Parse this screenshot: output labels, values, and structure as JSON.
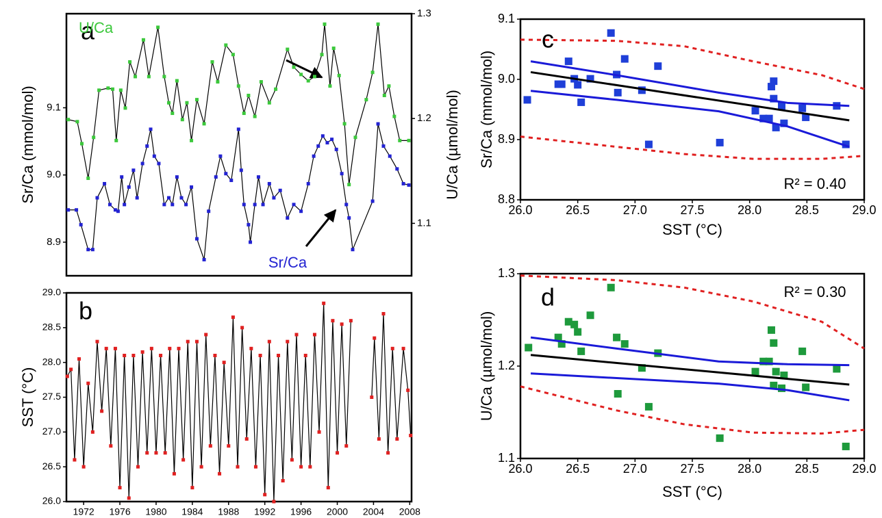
{
  "chart_data": [
    {
      "type": "line",
      "label": "a",
      "ylabel": "Sr/Ca (mmol/mol)",
      "y2label": "U/Ca (µmol/mol)",
      "xlim": [
        1970.1,
        2008.2
      ],
      "ylim": [
        8.85,
        9.24
      ],
      "y2lim": [
        1.05,
        1.3
      ],
      "yticks": [
        8.9,
        {
          "value": 9.0,
          "label": "9.0"
        },
        9.1
      ],
      "y2ticks": [
        1.1,
        1.2,
        1.3
      ],
      "series": [
        {
          "name": "U/Ca",
          "color": "#3cc83c",
          "line_color": "#000000",
          "marker": "square",
          "axis": "y2",
          "x": [
            1970.3,
            1971.3,
            1971.8,
            1972.5,
            1973.1,
            1973.7,
            1974.7,
            1975.2,
            1975.6,
            1976.1,
            1976.6,
            1977.1,
            1977.7,
            1978.6,
            1979.2,
            1980.2,
            1980.9,
            1981.4,
            1981.8,
            1982.3,
            1982.9,
            1983.4,
            1983.9,
            1984.5,
            1985.3,
            1986.2,
            1986.8,
            1987.7,
            1988.5,
            1989.1,
            1989.7,
            1990.2,
            1990.9,
            1991.6,
            1992.5,
            1993.2,
            1994.5,
            1995.2,
            1996.0,
            1996.8,
            1997.5,
            1998.3,
            1998.6,
            1999.2,
            1999.6,
            2000.2,
            2000.8,
            2001.3,
            2002.0,
            2003.2,
            2003.9,
            2004.5,
            2005.2,
            2005.7,
            2006.3,
            2006.9,
            2007.9
          ],
          "values": [
            1.199,
            1.197,
            1.176,
            1.143,
            1.182,
            1.227,
            1.229,
            1.228,
            1.179,
            1.227,
            1.21,
            1.254,
            1.24,
            1.275,
            1.24,
            1.287,
            1.24,
            1.215,
            1.205,
            1.236,
            1.199,
            1.215,
            1.179,
            1.218,
            1.195,
            1.254,
            1.235,
            1.27,
            1.261,
            1.231,
            1.205,
            1.222,
            1.202,
            1.235,
            1.215,
            1.228,
            1.266,
            1.249,
            1.242,
            1.236,
            1.24,
            1.261,
            1.29,
            1.231,
            1.267,
            1.241,
            1.195,
            1.137,
            1.182,
            1.218,
            1.244,
            1.29,
            1.222,
            1.231,
            1.202,
            1.179,
            1.179
          ]
        },
        {
          "name": "Sr/Ca",
          "color": "#2323d2",
          "line_color": "#000000",
          "marker": "square",
          "axis": "y",
          "x": [
            1970.3,
            1971.2,
            1971.7,
            1972.5,
            1973.0,
            1973.5,
            1974.3,
            1974.9,
            1975.5,
            1975.8,
            1976.2,
            1976.5,
            1977.0,
            1977.5,
            1977.9,
            1978.5,
            1979.0,
            1979.4,
            1979.8,
            1980.3,
            1980.9,
            1981.4,
            1981.8,
            1982.3,
            1982.8,
            1983.3,
            1983.9,
            1984.5,
            1985.3,
            1985.8,
            1986.6,
            1987.1,
            1987.7,
            1988.3,
            1989.1,
            1989.4,
            1989.7,
            1990.2,
            1990.4,
            1990.9,
            1991.3,
            1991.8,
            1992.5,
            1993.0,
            1993.7,
            1994.5,
            1995.2,
            1996.0,
            1996.8,
            1997.4,
            1997.9,
            1998.4,
            1998.9,
            1999.4,
            1999.9,
            2000.5,
            2001.0,
            2001.3,
            2001.7,
            2003.9,
            2004.5,
            2005.1,
            2005.8,
            2006.6,
            2007.3,
            2007.9
          ],
          "values": [
            8.948,
            8.948,
            8.926,
            8.889,
            8.889,
            8.966,
            8.987,
            8.956,
            8.948,
            8.946,
            8.997,
            8.956,
            8.982,
            9.007,
            8.966,
            9.017,
            9.043,
            9.068,
            9.028,
            9.017,
            8.956,
            8.966,
            8.956,
            8.997,
            8.966,
            8.956,
            8.982,
            8.905,
            8.874,
            8.946,
            8.997,
            9.028,
            9.002,
            8.992,
            9.068,
            9.007,
            8.956,
            8.926,
            8.9,
            8.956,
            8.997,
            8.956,
            8.987,
            8.966,
            8.977,
            8.936,
            8.956,
            8.946,
            8.987,
            9.028,
            9.043,
            9.058,
            9.048,
            9.053,
            9.038,
            9.002,
            8.956,
            8.936,
            8.889,
            8.961,
            9.076,
            9.043,
            9.028,
            9.009,
            8.987,
            8.985
          ]
        }
      ]
    },
    {
      "type": "line",
      "label": "b",
      "ylabel": "SST (°C)",
      "xlim": [
        1970.1,
        2008.2
      ],
      "ylim": [
        26,
        29
      ],
      "xticks": [
        1972,
        1976,
        1980,
        1984,
        1988,
        1992,
        1996,
        2000,
        2004,
        2008
      ],
      "yticks": [
        {
          "value": 26,
          "label": "26.0"
        },
        26.5,
        {
          "value": 27,
          "label": "27.0"
        },
        27.5,
        {
          "value": 28,
          "label": "28.0"
        },
        28.5,
        {
          "value": 29,
          "label": "29.0"
        }
      ],
      "series": [
        {
          "color": "#e02020",
          "line_color": "#000000",
          "marker": "square",
          "x": [
            1970.2,
            1970.6,
            1971.0,
            1971.5,
            1972.0,
            1972.5,
            1973.0,
            1973.5,
            1974.0,
            1974.5,
            1975.0,
            1975.5,
            1976.0,
            1976.5,
            1977.0,
            1977.5,
            1978.0,
            1978.5,
            1979.0,
            1979.5,
            1980.0,
            1980.5,
            1981.0,
            1981.5,
            1982.0,
            1982.5,
            1983.0,
            1983.5,
            1984.0,
            1984.5,
            1985.0,
            1985.5,
            1986.0,
            1986.5,
            1987.0,
            1987.5,
            1988.0,
            1988.5,
            1989.0,
            1989.5,
            1990.0,
            1990.5,
            1991.0,
            1991.5,
            1992.0,
            1992.5,
            1993.0,
            1993.5,
            1994.0,
            1994.5,
            1995.0,
            1995.5,
            1996.0,
            1996.5,
            1997.0,
            1997.5,
            1998.0,
            1998.5,
            1999.0,
            1999.5,
            2000.0,
            2000.5,
            2001.0,
            2001.5,
            2002.5,
            2003.8,
            2004.1,
            2004.6,
            2005.1,
            2005.6,
            2006.1,
            2006.6,
            2007.3,
            2007.8,
            2008.1
          ],
          "values": [
            27.8,
            27.9,
            26.6,
            28.05,
            26.5,
            27.7,
            27.0,
            28.3,
            27.3,
            28.2,
            26.8,
            28.2,
            26.2,
            28.1,
            26.05,
            28.1,
            26.5,
            28.15,
            26.7,
            28.2,
            26.7,
            28.1,
            26.7,
            28.2,
            26.4,
            28.2,
            26.6,
            28.3,
            26.2,
            28.3,
            26.5,
            28.4,
            26.8,
            28.1,
            26.4,
            28.0,
            26.8,
            28.65,
            26.5,
            28.5,
            26.9,
            28.2,
            26.5,
            28.1,
            26.1,
            28.3,
            26.0,
            28.1,
            26.3,
            28.3,
            26.6,
            28.4,
            26.5,
            28.1,
            26.5,
            28.4,
            27.0,
            28.85,
            26.2,
            28.6,
            26.7,
            28.55,
            26.8,
            28.6,
            null,
            27.5,
            28.35,
            26.9,
            28.7,
            26.7,
            28.2,
            26.9,
            28.2,
            27.6,
            26.95
          ]
        }
      ]
    },
    {
      "type": "scatter",
      "label": "c",
      "ylabel": "Sr/Ca (mmol/mol)",
      "xlabel": "SST (°C)",
      "annotation": "R² = 0.40",
      "xlim": [
        26,
        29
      ],
      "ylim": [
        8.8,
        9.1
      ],
      "xticks": [
        {
          "value": 26,
          "label": "26.0"
        },
        26.5,
        {
          "value": 27,
          "label": "27.0"
        },
        27.5,
        {
          "value": 28,
          "label": "28.0"
        },
        28.5,
        {
          "value": 29,
          "label": "29.0"
        }
      ],
      "yticks": [
        8.8,
        8.9,
        {
          "value": 9.0,
          "label": "9.0"
        },
        9.1
      ],
      "series": [
        {
          "color": "#1f3fd8",
          "marker": "square",
          "x": [
            26.06,
            26.33,
            26.36,
            26.42,
            26.47,
            26.5,
            26.53,
            26.61,
            26.79,
            26.84,
            26.85,
            26.91,
            27.06,
            27.12,
            27.2,
            27.74,
            28.05,
            28.12,
            28.17,
            28.19,
            28.21,
            28.21,
            28.23,
            28.28,
            28.3,
            28.46,
            28.49,
            28.76,
            28.84
          ],
          "values": [
            8.966,
            8.992,
            8.992,
            9.03,
            9.001,
            8.991,
            8.962,
            9.001,
            9.077,
            9.008,
            8.978,
            9.034,
            8.982,
            8.892,
            9.022,
            8.895,
            8.948,
            8.935,
            8.935,
            8.988,
            8.997,
            8.968,
            8.92,
            8.956,
            8.927,
            8.952,
            8.937,
            8.956,
            8.892
          ]
        },
        {
          "line_color": "#000000",
          "x": [
            26.09,
            28.87
          ],
          "values": [
            9.012,
            8.932
          ]
        },
        {
          "line_color": "#1a1ad8",
          "x": [
            26.09,
            26.84,
            27.73,
            28.33,
            28.87
          ],
          "values": [
            9.03,
            9.007,
            8.978,
            8.961,
            8.956
          ]
        },
        {
          "line_color": "#1a1ad8",
          "x": [
            26.09,
            26.84,
            27.73,
            28.33,
            28.87
          ],
          "values": [
            8.981,
            8.966,
            8.947,
            8.922,
            8.888
          ]
        },
        {
          "line_color": "#e02020",
          "dashed": true,
          "x": [
            26.0,
            26.84,
            27.43,
            28.03,
            28.63,
            29.0
          ],
          "values": [
            9.066,
            9.064,
            9.055,
            9.03,
            9.007,
            8.984
          ]
        },
        {
          "line_color": "#e02020",
          "dashed": true,
          "x": [
            26.0,
            26.84,
            27.43,
            28.03,
            28.63,
            29.0
          ],
          "values": [
            8.905,
            8.888,
            8.876,
            8.868,
            8.868,
            8.873
          ]
        }
      ]
    },
    {
      "type": "scatter",
      "label": "d",
      "ylabel": "U/Ca (µmol/mol)",
      "xlabel": "SST (°C)",
      "annotation": "R² = 0.30",
      "xlim": [
        26,
        29
      ],
      "ylim": [
        1.1,
        1.3
      ],
      "xticks": [
        {
          "value": 26,
          "label": "26.0"
        },
        26.5,
        {
          "value": 27,
          "label": "27.0"
        },
        27.5,
        {
          "value": 28,
          "label": "28.0"
        },
        28.5,
        {
          "value": 29,
          "label": "29.0"
        }
      ],
      "yticks": [
        1.1,
        1.2,
        1.3
      ],
      "series": [
        {
          "color": "#1e9a3c",
          "marker": "square",
          "x": [
            26.07,
            26.33,
            26.36,
            26.42,
            26.47,
            26.5,
            26.53,
            26.61,
            26.79,
            26.84,
            26.85,
            26.91,
            27.06,
            27.12,
            27.2,
            27.74,
            28.05,
            28.12,
            28.17,
            28.19,
            28.21,
            28.21,
            28.23,
            28.28,
            28.3,
            28.46,
            28.49,
            28.76,
            28.84
          ],
          "values": [
            1.22,
            1.231,
            1.224,
            1.248,
            1.245,
            1.237,
            1.216,
            1.255,
            1.285,
            1.231,
            1.17,
            1.224,
            1.198,
            1.156,
            1.214,
            1.122,
            1.194,
            1.205,
            1.205,
            1.239,
            1.225,
            1.179,
            1.194,
            1.176,
            1.19,
            1.216,
            1.177,
            1.197,
            1.113
          ]
        },
        {
          "line_color": "#000000",
          "x": [
            26.09,
            28.87
          ],
          "values": [
            1.212,
            1.18
          ]
        },
        {
          "line_color": "#1a1ad8",
          "x": [
            26.09,
            26.84,
            27.73,
            28.33,
            28.87
          ],
          "values": [
            1.231,
            1.219,
            1.205,
            1.202,
            1.201
          ]
        },
        {
          "line_color": "#1a1ad8",
          "x": [
            26.09,
            26.84,
            27.73,
            28.33,
            28.87
          ],
          "values": [
            1.192,
            1.187,
            1.181,
            1.174,
            1.163
          ]
        },
        {
          "line_color": "#e02020",
          "dashed": true,
          "x": [
            26.0,
            26.84,
            27.43,
            28.03,
            28.63,
            29.0
          ],
          "values": [
            1.298,
            1.293,
            1.285,
            1.27,
            1.248,
            1.219
          ]
        },
        {
          "line_color": "#e02020",
          "dashed": true,
          "x": [
            26.0,
            26.84,
            27.43,
            28.03,
            28.63,
            29.0
          ],
          "values": [
            1.178,
            1.152,
            1.137,
            1.128,
            1.127,
            1.131
          ]
        }
      ]
    }
  ]
}
